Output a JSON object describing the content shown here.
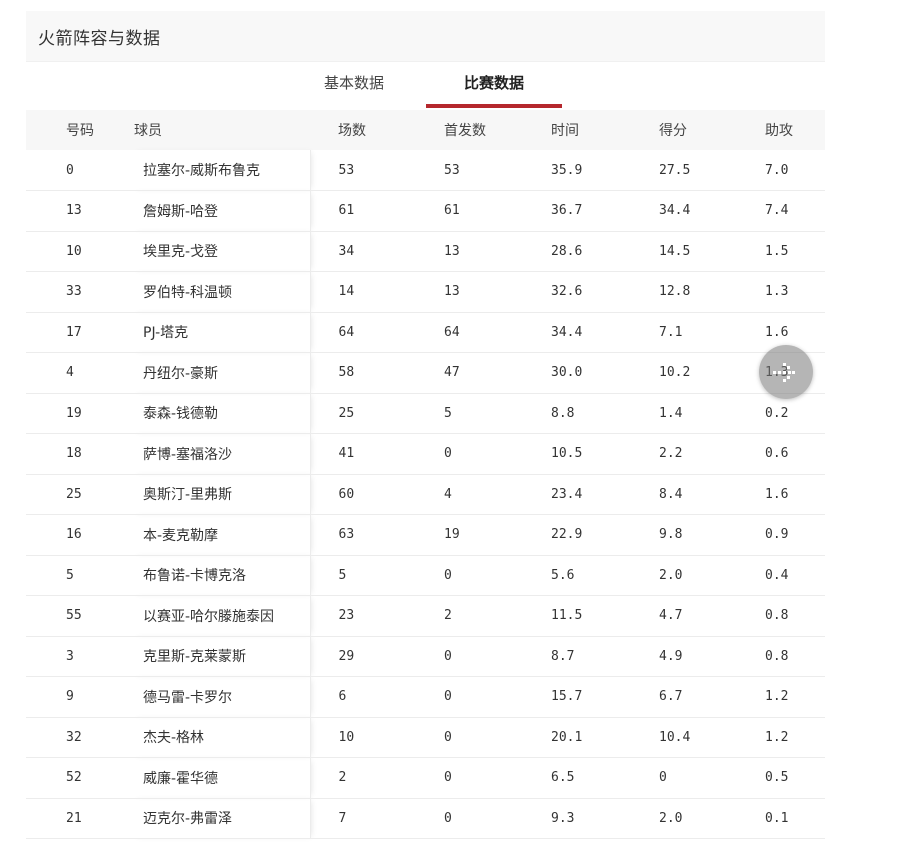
{
  "title": "火箭阵容与数据",
  "tabs": [
    {
      "label": "基本数据",
      "active": false
    },
    {
      "label": "比赛数据",
      "active": true
    }
  ],
  "accent_color": "#b5272d",
  "columns": [
    "号码",
    "球员",
    "场数",
    "首发数",
    "时间",
    "得分",
    "助攻"
  ],
  "rows": [
    [
      "0",
      "拉塞尔-威斯布鲁克",
      "53",
      "53",
      "35.9",
      "27.5",
      "7.0"
    ],
    [
      "13",
      "詹姆斯-哈登",
      "61",
      "61",
      "36.7",
      "34.4",
      "7.4"
    ],
    [
      "10",
      "埃里克-戈登",
      "34",
      "13",
      "28.6",
      "14.5",
      "1.5"
    ],
    [
      "33",
      "罗伯特-科温顿",
      "14",
      "13",
      "32.6",
      "12.8",
      "1.3"
    ],
    [
      "17",
      "PJ-塔克",
      "64",
      "64",
      "34.4",
      "7.1",
      "1.6"
    ],
    [
      "4",
      "丹纽尔-豪斯",
      "58",
      "47",
      "30.0",
      "10.2",
      "1.3"
    ],
    [
      "19",
      "泰森-钱德勒",
      "25",
      "5",
      "8.8",
      "1.4",
      "0.2"
    ],
    [
      "18",
      "萨博-塞福洛沙",
      "41",
      "0",
      "10.5",
      "2.2",
      "0.6"
    ],
    [
      "25",
      "奥斯汀-里弗斯",
      "60",
      "4",
      "23.4",
      "8.4",
      "1.6"
    ],
    [
      "16",
      "本-麦克勒摩",
      "63",
      "19",
      "22.9",
      "9.8",
      "0.9"
    ],
    [
      "5",
      "布鲁诺-卡博克洛",
      "5",
      "0",
      "5.6",
      "2.0",
      "0.4"
    ],
    [
      "55",
      "以赛亚-哈尔滕施泰因",
      "23",
      "2",
      "11.5",
      "4.7",
      "0.8"
    ],
    [
      "3",
      "克里斯-克莱蒙斯",
      "29",
      "0",
      "8.7",
      "4.9",
      "0.8"
    ],
    [
      "9",
      "德马雷-卡罗尔",
      "6",
      "0",
      "15.7",
      "6.7",
      "1.2"
    ],
    [
      "32",
      "杰夫-格林",
      "10",
      "0",
      "20.1",
      "10.4",
      "1.2"
    ],
    [
      "52",
      "威廉-霍华德",
      "2",
      "0",
      "6.5",
      "0",
      "0.5"
    ],
    [
      "21",
      "迈克尔-弗雷泽",
      "7",
      "0",
      "9.3",
      "2.0",
      "0.1"
    ]
  ],
  "float_button_icon": "arrow-right-icon"
}
